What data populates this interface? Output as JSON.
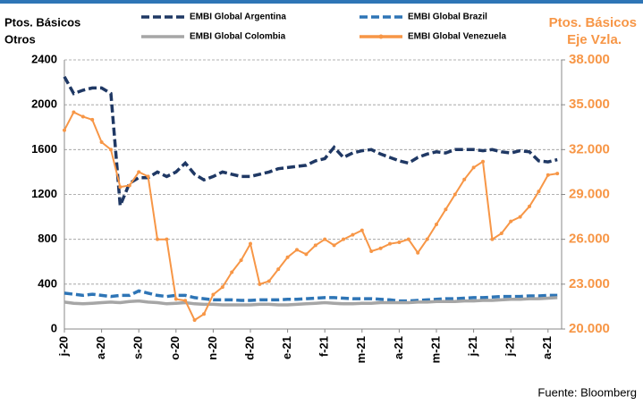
{
  "chart_data": {
    "type": "line",
    "ylabel": [
      "Ptos. Básicos",
      "Otros"
    ],
    "y2label": [
      "Ptos. Básicos",
      "Eje Vzla."
    ],
    "source": "Fuente: Bloomberg",
    "categories": [
      "j-20",
      null,
      null,
      null,
      "a-20",
      null,
      null,
      null,
      "s-20",
      null,
      null,
      null,
      "o-20",
      null,
      null,
      null,
      "n-20",
      null,
      null,
      null,
      "d-20",
      null,
      null,
      null,
      "e-21",
      null,
      null,
      null,
      "f-21",
      null,
      null,
      null,
      "m-21",
      null,
      null,
      null,
      "a-21",
      null,
      null,
      null,
      "m-21",
      null,
      null,
      null,
      "j-21",
      null,
      null,
      null,
      "j-21",
      null,
      null,
      null,
      "a-21",
      null
    ],
    "ylim": [
      0,
      2400
    ],
    "yticks": [
      0,
      400,
      800,
      1200,
      1600,
      2000,
      2400
    ],
    "y2lim": [
      20000,
      38000
    ],
    "y2ticks": [
      {
        "value": 20000,
        "label": "20.000"
      },
      {
        "value": 23000,
        "label": "23.000"
      },
      {
        "value": 26000,
        "label": "26.000"
      },
      {
        "value": 29000,
        "label": "29.000"
      },
      {
        "value": 32000,
        "label": "32.000"
      },
      {
        "value": 35000,
        "label": "35.000"
      },
      {
        "value": 38000,
        "label": "38.000"
      }
    ],
    "grid": true,
    "series": [
      {
        "name": "EMBI Global Argentina",
        "color": "#1f3864",
        "style": "dashed",
        "values": [
          2250,
          2100,
          2130,
          2150,
          2150,
          2100,
          1100,
          1300,
          1350,
          1350,
          1400,
          1360,
          1400,
          1480,
          1380,
          1330,
          1360,
          1400,
          1380,
          1360,
          1360,
          1380,
          1400,
          1430,
          1440,
          1450,
          1460,
          1500,
          1520,
          1620,
          1530,
          1570,
          1590,
          1600,
          1560,
          1530,
          1500,
          1480,
          1530,
          1560,
          1580,
          1570,
          1600,
          1600,
          1600,
          1590,
          1600,
          1580,
          1570,
          1590,
          1580,
          1500,
          1490,
          1510
        ]
      },
      {
        "name": "EMBI Global Brazil",
        "color": "#2e75b6",
        "style": "dashed",
        "values": [
          320,
          310,
          300,
          310,
          300,
          290,
          300,
          300,
          340,
          320,
          300,
          290,
          300,
          300,
          280,
          270,
          260,
          260,
          260,
          255,
          255,
          260,
          260,
          260,
          265,
          265,
          270,
          275,
          280,
          280,
          275,
          270,
          270,
          270,
          265,
          260,
          250,
          250,
          255,
          260,
          265,
          270,
          270,
          275,
          280,
          280,
          285,
          290,
          290,
          290,
          295,
          295,
          300,
          300
        ]
      },
      {
        "name": "EMBI Global Colombia",
        "color": "#a6a6a6",
        "style": "solid",
        "values": [
          240,
          230,
          225,
          230,
          235,
          240,
          235,
          245,
          250,
          240,
          235,
          225,
          230,
          235,
          225,
          220,
          220,
          215,
          215,
          215,
          215,
          220,
          220,
          215,
          215,
          220,
          225,
          230,
          235,
          230,
          225,
          225,
          230,
          230,
          235,
          235,
          235,
          235,
          240,
          240,
          245,
          245,
          245,
          250,
          250,
          255,
          255,
          260,
          265,
          265,
          270,
          270,
          275,
          280
        ]
      },
      {
        "name": "EMBI Global Venezuela",
        "color": "#f79646",
        "style": "markers",
        "axis": "y2",
        "values": [
          33300,
          34500,
          34200,
          34000,
          32500,
          32000,
          29500,
          29600,
          30500,
          30200,
          26000,
          26000,
          22000,
          21900,
          20600,
          21000,
          22300,
          22800,
          23800,
          24600,
          25700,
          23000,
          23200,
          24000,
          24800,
          25300,
          25000,
          25600,
          26000,
          25600,
          26000,
          26300,
          26600,
          25200,
          25400,
          25700,
          25800,
          26000,
          25100,
          26000,
          27000,
          28000,
          29000,
          30000,
          30800,
          31200,
          26000,
          26400,
          27200,
          27500,
          28200,
          29200,
          30300,
          30400
        ]
      }
    ]
  }
}
